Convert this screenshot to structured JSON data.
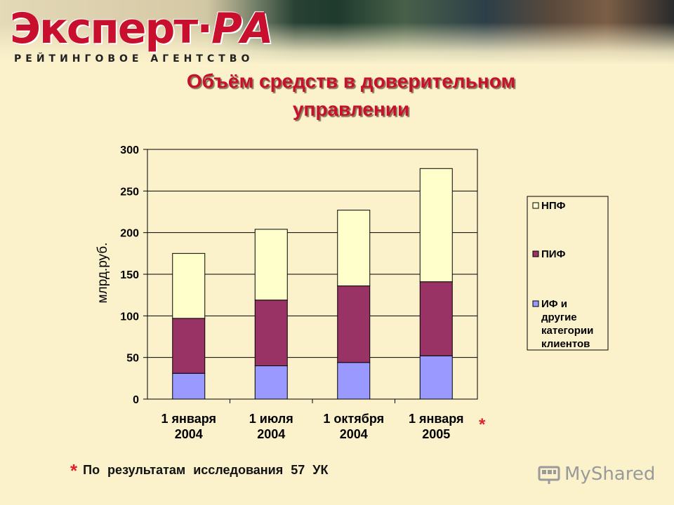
{
  "logo": {
    "main": "Эксперт",
    "dot": "·",
    "suffix": "РА",
    "subtitle": "РЕЙТИНГОВОЕ АГЕНТСТВО"
  },
  "title_line1": "Объём средств в доверительном",
  "title_line2": "управлении",
  "chart_data": {
    "type": "bar",
    "stacked": true,
    "title": "",
    "xlabel": "",
    "ylabel": "млрд.руб.",
    "ylim": [
      0,
      300
    ],
    "yticks": [
      0,
      50,
      100,
      150,
      200,
      250,
      300
    ],
    "grid": true,
    "legend_position": "right",
    "categories": [
      [
        "1 января",
        "2004"
      ],
      [
        "1 июля",
        "2004"
      ],
      [
        "1 октября",
        "2004"
      ],
      [
        "1 января",
        "2005"
      ]
    ],
    "series": [
      {
        "name": "ИФ и другие категории клиентов",
        "color": "#9999ff",
        "values": [
          31,
          40,
          44,
          52
        ]
      },
      {
        "name": "ПИФ",
        "color": "#993366",
        "values": [
          66,
          79,
          92,
          89
        ]
      },
      {
        "name": "НПФ",
        "color": "#ffffcc",
        "values": [
          78,
          85,
          91,
          136
        ]
      }
    ],
    "legend": [
      {
        "lines": [
          "НПФ"
        ],
        "color": "#ffffcc"
      },
      {
        "lines": [
          "ПИФ"
        ],
        "color": "#993366"
      },
      {
        "lines": [
          "ИФ и",
          "другие",
          "категории",
          "клиентов"
        ],
        "color": "#9999ff"
      }
    ],
    "annotation": "*"
  },
  "footnote": {
    "star": "*",
    "text": "По результатам исследования 57 УК"
  },
  "watermark": "MyShared"
}
